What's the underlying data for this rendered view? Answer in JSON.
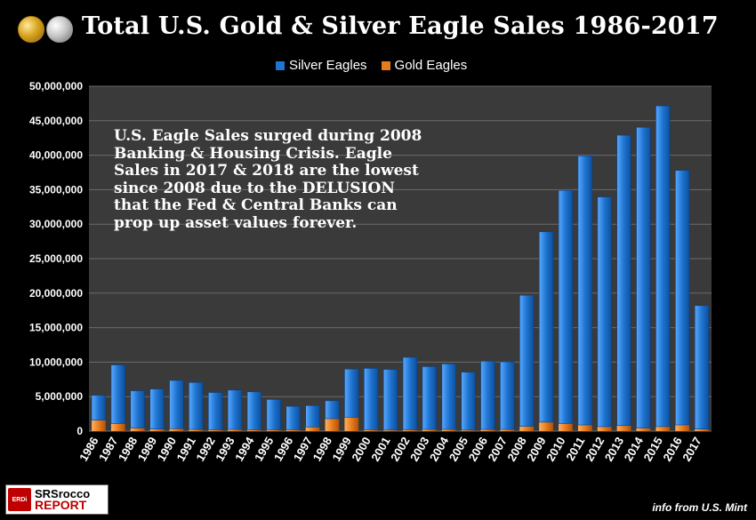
{
  "title": "Total U.S. Gold & Silver Eagle Sales 1986-2017",
  "annotation": [
    "U.S. Eagle Sales surged during 2008",
    "Banking & Housing Crisis.  Eagle",
    "Sales in 2017 & 2018 are the lowest",
    "since 2008 due to the DELUSION",
    "that the Fed & Central Banks can",
    "prop up asset values forever."
  ],
  "source": "info from U.S. Mint",
  "logo": {
    "line1": "SRSrocco",
    "line2": "REPORT",
    "badge": "ERDi"
  },
  "colors": {
    "silver": "#1e74cf",
    "gold": "#e87b1c",
    "plot_bg": "#3a3a3a",
    "grid": "#6a6a6a"
  },
  "chart_data": {
    "type": "bar",
    "stacked": true,
    "categories": [
      "1986",
      "1987",
      "1988",
      "1989",
      "1990",
      "1991",
      "1992",
      "1993",
      "1994",
      "1995",
      "1996",
      "1997",
      "1998",
      "1999",
      "2000",
      "2001",
      "2002",
      "2003",
      "2004",
      "2005",
      "2006",
      "2007",
      "2008",
      "2009",
      "2010",
      "2011",
      "2012",
      "2013",
      "2014",
      "2015",
      "2016",
      "2017"
    ],
    "series": [
      {
        "name": "Gold Eagles",
        "values": [
          1600000,
          1100000,
          450000,
          300000,
          350000,
          250000,
          200000,
          250000,
          200000,
          200000,
          200000,
          600000,
          1800000,
          2000000,
          200000,
          150000,
          200000,
          250000,
          250000,
          150000,
          250000,
          250000,
          700000,
          1300000,
          1100000,
          900000,
          650000,
          800000,
          450000,
          650000,
          900000,
          300000
        ]
      },
      {
        "name": "Silver Eagles",
        "values": [
          3600000,
          8500000,
          5400000,
          5800000,
          7000000,
          6800000,
          5400000,
          5700000,
          5500000,
          4400000,
          3400000,
          3100000,
          2600000,
          7000000,
          8900000,
          8800000,
          10500000,
          9100000,
          9500000,
          8400000,
          9900000,
          9800000,
          19000000,
          27600000,
          33800000,
          39000000,
          33300000,
          42100000,
          43600000,
          46500000,
          36900000,
          17900000
        ]
      }
    ],
    "legend": [
      "Silver Eagles",
      "Gold Eagles"
    ],
    "legend_position": "top",
    "ylim": [
      0,
      50000000
    ],
    "yticks": [
      "0",
      "5,000,000",
      "10,000,000",
      "15,000,000",
      "20,000,000",
      "25,000,000",
      "30,000,000",
      "35,000,000",
      "40,000,000",
      "45,000,000",
      "50,000,000"
    ],
    "grid": true,
    "xlabel": "",
    "ylabel": ""
  }
}
